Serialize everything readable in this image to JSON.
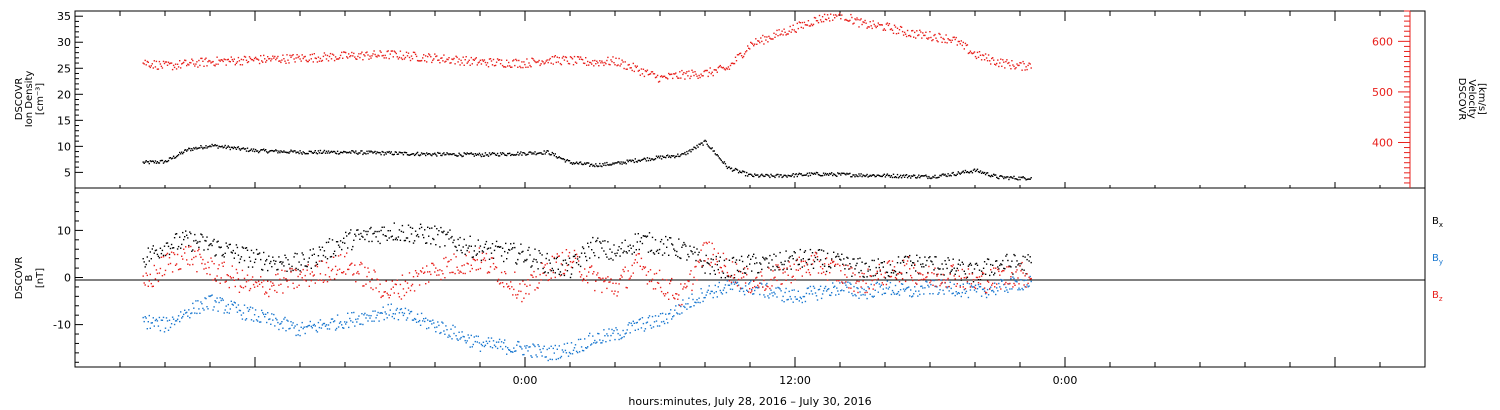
{
  "chart_data": [
    {
      "type": "scatter",
      "panel": "top",
      "left_axis_title": [
        "DSCOVR",
        "Ion Density",
        "[cm⁻³]"
      ],
      "right_axis_title": [
        "DSCOVR",
        "Velocity",
        "[km/s]"
      ],
      "left_ticks": [
        "5",
        "10",
        "15",
        "20",
        "25",
        "30",
        "35"
      ],
      "right_ticks": [
        "400",
        "500",
        "600"
      ],
      "ylim_left": [
        2,
        36
      ],
      "ylim_right": [
        310,
        660
      ],
      "colors": {
        "density": "#000000",
        "velocity": "#e8201c"
      },
      "series": [
        {
          "name": "Ion Density",
          "color": "#000000",
          "hours": [
            -17,
            -16,
            -15,
            -14,
            -12,
            -10,
            -8,
            -6,
            -4,
            -2,
            0,
            1,
            2,
            3,
            4,
            5,
            6,
            7,
            8,
            9,
            10,
            11,
            12,
            13,
            14,
            15,
            16,
            17,
            18,
            19,
            20,
            21,
            22,
            22.5
          ],
          "values": [
            7,
            7.2,
            9.5,
            10.3,
            9.3,
            9.0,
            9.0,
            8.8,
            8.6,
            8.5,
            8.8,
            9.0,
            7.0,
            6.5,
            6.8,
            7.5,
            8.0,
            8.5,
            11.0,
            6.0,
            4.5,
            4.4,
            4.6,
            4.8,
            4.7,
            4.6,
            4.5,
            4.4,
            4.3,
            4.8,
            5.5,
            4.2,
            4.0,
            4.1
          ]
        },
        {
          "name": "Velocity",
          "color": "#e8201c",
          "hours": [
            -17,
            -16,
            -15,
            -14,
            -12,
            -10,
            -8,
            -6,
            -4,
            -2,
            0,
            1,
            2,
            3,
            4,
            5,
            6,
            7,
            8,
            9,
            10,
            11,
            12,
            13,
            14,
            15,
            16,
            17,
            18,
            19,
            20,
            21,
            22,
            22.5
          ],
          "values": [
            560,
            552,
            557,
            561,
            565,
            568,
            572,
            575,
            568,
            560,
            558,
            565,
            563,
            560,
            562,
            545,
            528,
            535,
            538,
            548,
            595,
            612,
            628,
            645,
            655,
            635,
            630,
            618,
            612,
            605,
            575,
            560,
            552,
            555
          ]
        }
      ]
    },
    {
      "type": "scatter",
      "panel": "bottom",
      "left_axis_title": [
        "DSCOVR",
        "B",
        "[nT]"
      ],
      "left_ticks": [
        "-10",
        "0",
        "10"
      ],
      "ylim": [
        -19,
        19
      ],
      "zero_line": true,
      "series": [
        {
          "name": "Bx",
          "color": "#000000",
          "hours": [
            -17,
            -16,
            -15,
            -14,
            -12,
            -10,
            -8,
            -6,
            -4,
            -2,
            0,
            1,
            2,
            3,
            4,
            5,
            6,
            7,
            8,
            9,
            10,
            11,
            12,
            13,
            14,
            15,
            16,
            17,
            18,
            19,
            20,
            21,
            22,
            22.5
          ],
          "values": [
            4,
            7,
            8,
            7,
            4,
            3,
            8,
            10,
            9,
            6,
            5,
            3,
            2,
            7,
            5,
            8,
            7,
            6,
            3,
            2,
            3,
            3,
            4,
            4,
            3,
            2,
            2,
            3,
            3,
            2,
            1,
            3,
            3,
            3
          ]
        },
        {
          "name": "By",
          "color": "#1a78d0",
          "hours": [
            -17,
            -16,
            -15,
            -14,
            -12,
            -10,
            -8,
            -6,
            -4,
            -2,
            0,
            1,
            2,
            3,
            4,
            5,
            6,
            7,
            8,
            9,
            10,
            11,
            12,
            13,
            14,
            15,
            16,
            17,
            18,
            19,
            20,
            21,
            22,
            22.5
          ],
          "values": [
            -9,
            -10,
            -7,
            -5,
            -8,
            -11,
            -9,
            -7,
            -10,
            -14,
            -15,
            -16,
            -15,
            -13,
            -12,
            -10,
            -9,
            -6,
            -3,
            -2,
            -2,
            -3,
            -4,
            -3,
            -2,
            -3,
            -2,
            -3,
            -2,
            -2,
            -3,
            -2,
            -1,
            -1
          ]
        },
        {
          "name": "Bz",
          "color": "#e8201c",
          "hours": [
            -17,
            -16,
            -15,
            -14,
            -12,
            -10,
            -8,
            -6,
            -4,
            -2,
            0,
            1,
            2,
            3,
            4,
            5,
            6,
            7,
            8,
            9,
            10,
            11,
            12,
            13,
            14,
            15,
            16,
            17,
            18,
            19,
            20,
            21,
            22,
            22.5
          ],
          "values": [
            -2,
            3,
            5,
            2,
            -2,
            0,
            3,
            -3,
            2,
            4,
            -3,
            2,
            4,
            0,
            -2,
            3,
            -1,
            -4,
            6,
            2,
            -1,
            0,
            2,
            3,
            1,
            -1,
            1,
            2,
            0,
            1,
            -1,
            0,
            1,
            0
          ]
        }
      ],
      "legend": [
        {
          "label": "B",
          "sub": "x",
          "color": "#000000"
        },
        {
          "label": "B",
          "sub": "y",
          "color": "#1a78d0"
        },
        {
          "label": "B",
          "sub": "z",
          "color": "#e8201c"
        }
      ]
    }
  ],
  "time_axis": {
    "xlim_hours": [
      -20,
      40
    ],
    "tick_labels": [
      {
        "hour": 0,
        "label": "0:00"
      },
      {
        "hour": 12,
        "label": "12:00"
      },
      {
        "hour": 24,
        "label": "0:00"
      }
    ],
    "xlabel": "hours:minutes, July 28, 2016 – July 30, 2016"
  }
}
